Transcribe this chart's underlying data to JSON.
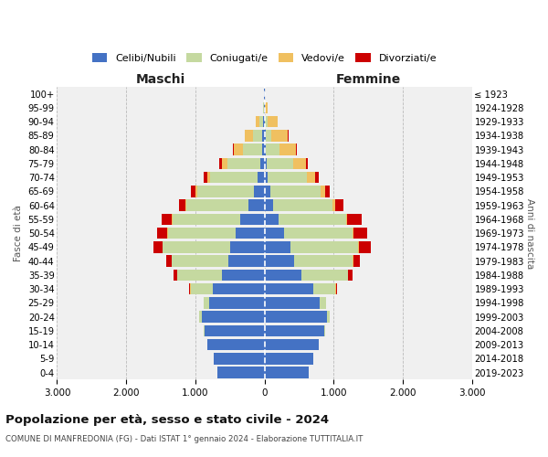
{
  "age_groups": [
    "0-4",
    "5-9",
    "10-14",
    "15-19",
    "20-24",
    "25-29",
    "30-34",
    "35-39",
    "40-44",
    "45-49",
    "50-54",
    "55-59",
    "60-64",
    "65-69",
    "70-74",
    "75-79",
    "80-84",
    "85-89",
    "90-94",
    "95-99",
    "100+"
  ],
  "birth_years": [
    "2019-2023",
    "2014-2018",
    "2009-2013",
    "2004-2008",
    "1999-2003",
    "1994-1998",
    "1989-1993",
    "1984-1988",
    "1979-1983",
    "1974-1978",
    "1969-1973",
    "1964-1968",
    "1959-1963",
    "1954-1958",
    "1949-1953",
    "1944-1948",
    "1939-1943",
    "1934-1938",
    "1929-1933",
    "1924-1928",
    "≤ 1923"
  ],
  "male": {
    "single": [
      680,
      730,
      820,
      870,
      900,
      800,
      750,
      610,
      520,
      500,
      420,
      350,
      230,
      150,
      100,
      60,
      40,
      30,
      20,
      10,
      5
    ],
    "married": [
      1,
      2,
      5,
      10,
      40,
      80,
      320,
      650,
      820,
      970,
      980,
      980,
      900,
      820,
      680,
      470,
      270,
      130,
      50,
      8,
      2
    ],
    "widowed": [
      0,
      0,
      0,
      0,
      0,
      0,
      1,
      1,
      2,
      3,
      5,
      10,
      15,
      30,
      50,
      90,
      130,
      120,
      50,
      5,
      1
    ],
    "divorced": [
      0,
      0,
      0,
      1,
      2,
      5,
      20,
      50,
      80,
      130,
      150,
      150,
      90,
      70,
      50,
      30,
      15,
      10,
      5,
      2,
      0
    ]
  },
  "female": {
    "single": [
      640,
      700,
      780,
      860,
      900,
      800,
      700,
      540,
      430,
      380,
      280,
      200,
      130,
      80,
      50,
      30,
      20,
      15,
      10,
      5,
      3
    ],
    "married": [
      1,
      2,
      5,
      15,
      45,
      90,
      330,
      670,
      850,
      980,
      1000,
      980,
      860,
      730,
      560,
      380,
      200,
      90,
      30,
      5,
      1
    ],
    "widowed": [
      0,
      0,
      0,
      0,
      0,
      1,
      1,
      2,
      3,
      5,
      10,
      20,
      40,
      70,
      120,
      190,
      240,
      230,
      150,
      30,
      3
    ],
    "divorced": [
      0,
      0,
      0,
      1,
      2,
      5,
      20,
      60,
      100,
      170,
      200,
      200,
      110,
      70,
      50,
      30,
      15,
      10,
      5,
      2,
      0
    ]
  },
  "colors": {
    "single": "#4472c4",
    "married": "#c5d9a0",
    "widowed": "#f0c060",
    "divorced": "#cc0000"
  },
  "xlim": 3000,
  "title": "Popolazione per età, sesso e stato civile - 2024",
  "subtitle": "COMUNE DI MANFREDONIA (FG) - Dati ISTAT 1° gennaio 2024 - Elaborazione TUTTITALIA.IT",
  "ylabel_left": "Fasce di età",
  "ylabel_right": "Anni di nascita",
  "bg_color": "#f0f0f0",
  "grid_color": "#bbbbbb",
  "header_maschi": "Maschi",
  "header_femmine": "Femmine"
}
